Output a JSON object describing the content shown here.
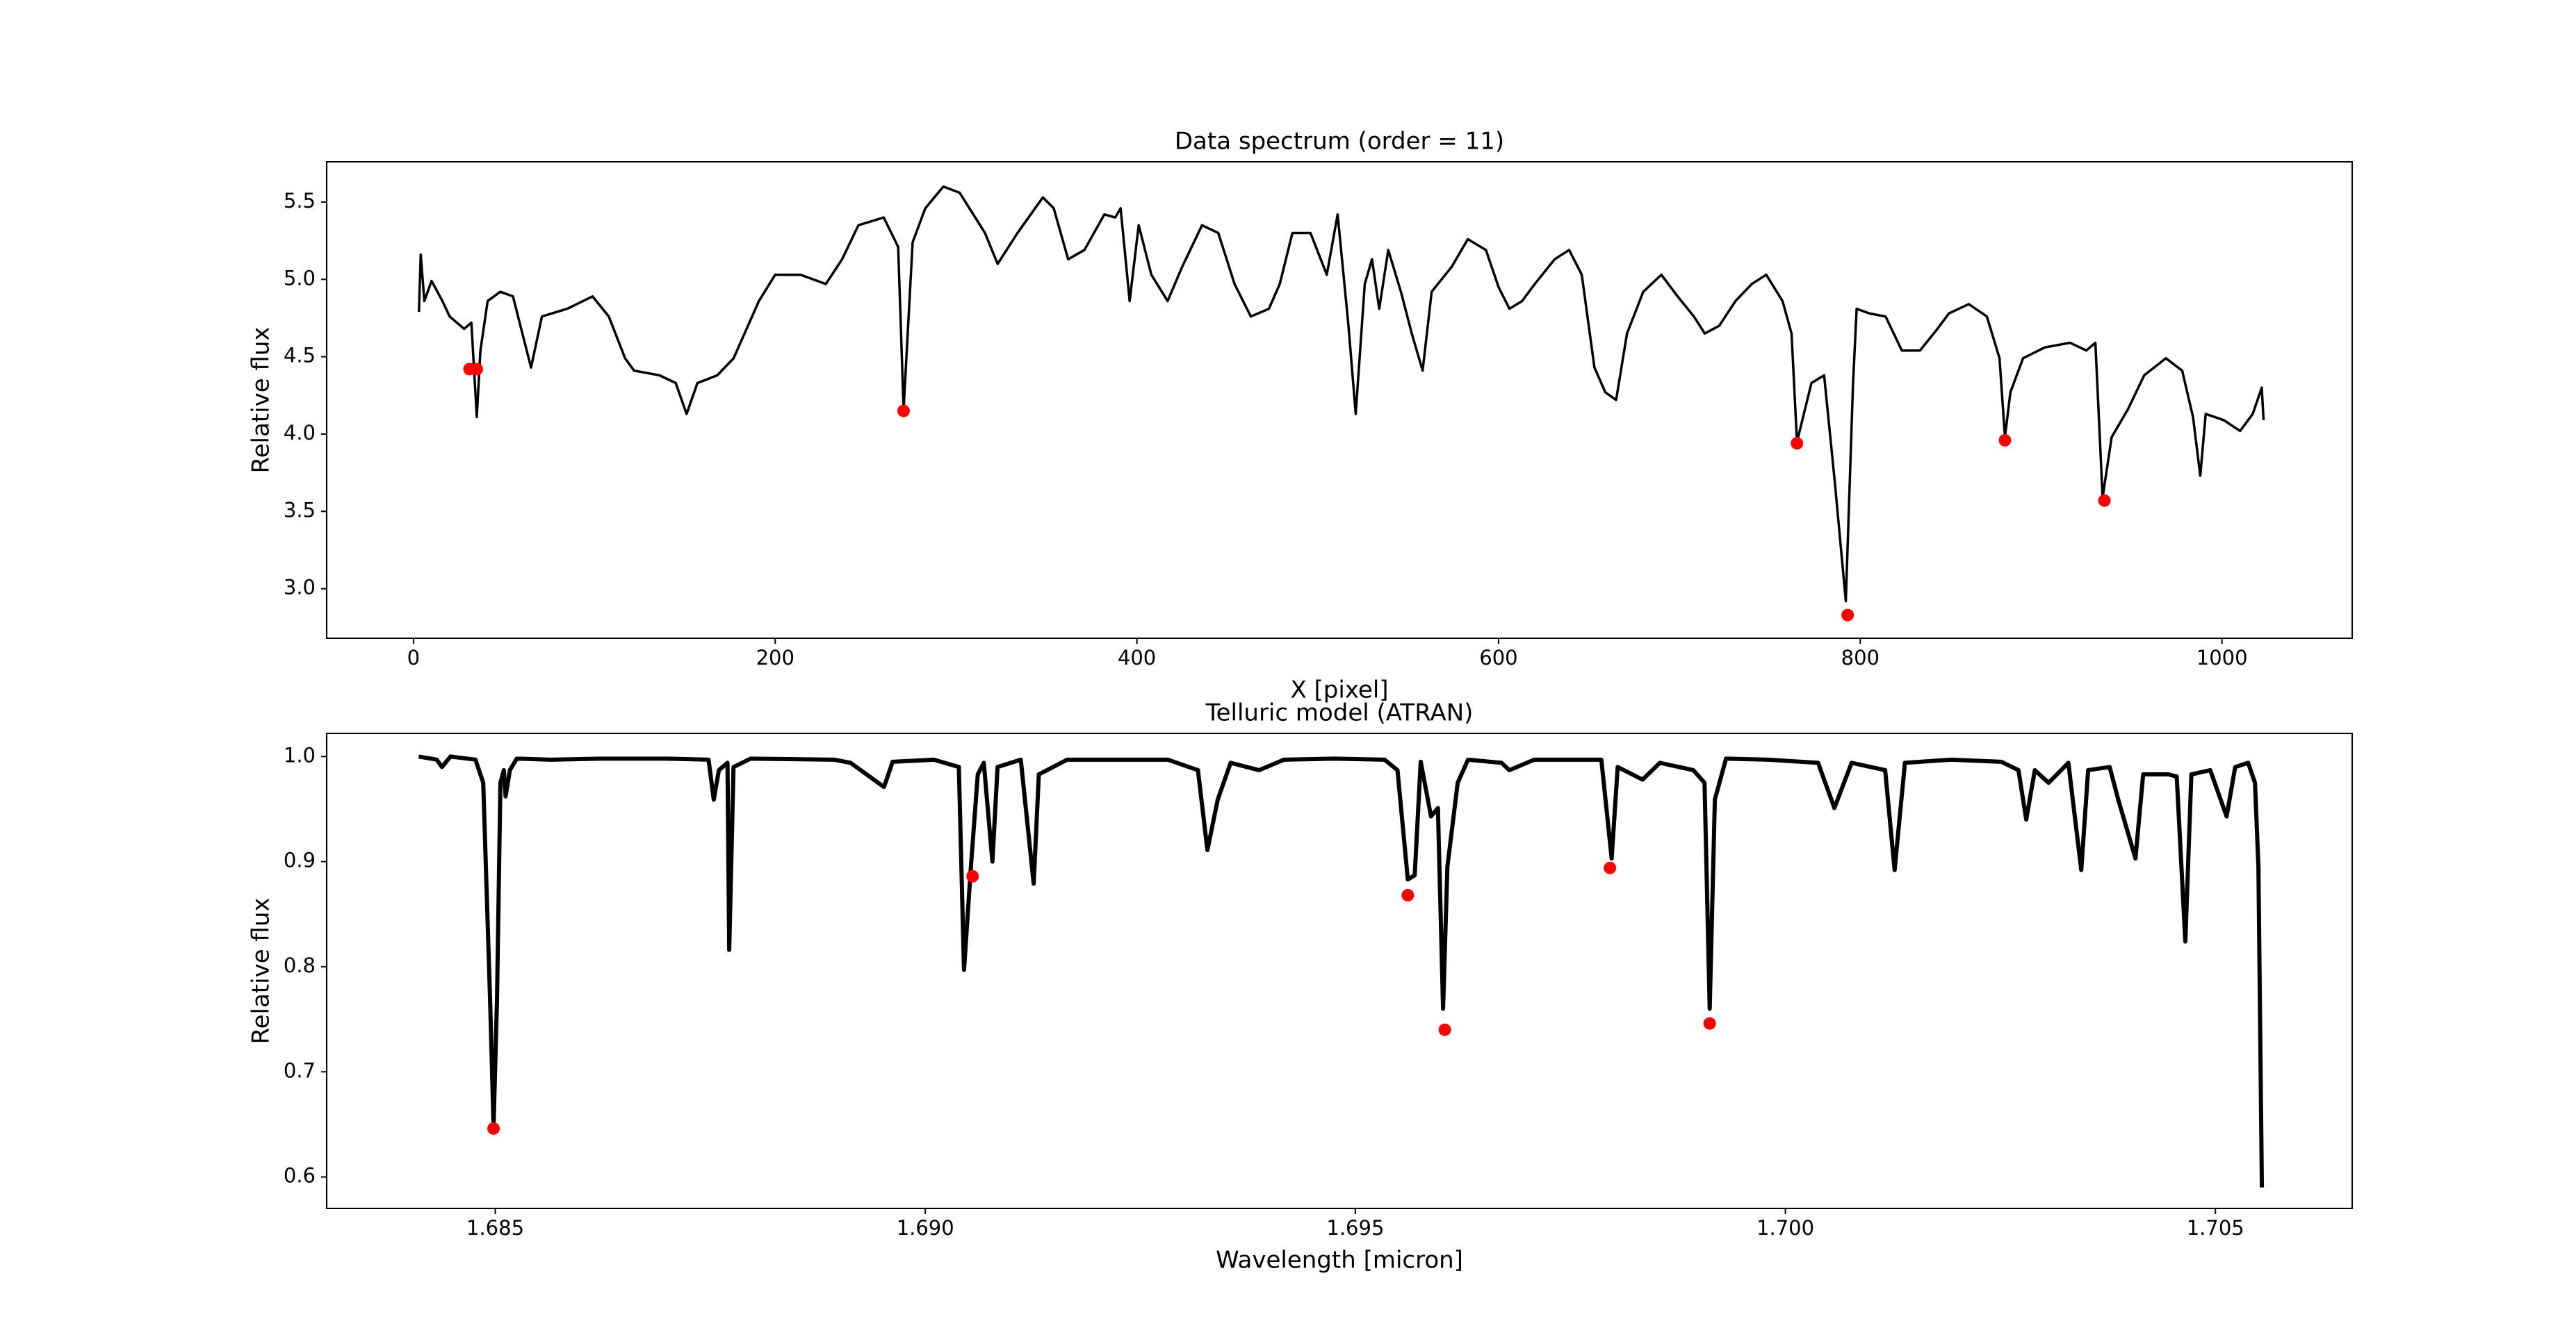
{
  "chart_data": [
    {
      "type": "line",
      "title": "Data spectrum (order = 11)",
      "xlabel": "X [pixel]",
      "ylabel": "Relative flux",
      "xlim": [
        -48,
        1072
      ],
      "ylim": [
        2.68,
        5.76
      ],
      "xticks": [
        0,
        200,
        400,
        600,
        800,
        1000
      ],
      "yticks": [
        {
          "value": 3,
          "label": "3.0"
        },
        3.5,
        {
          "value": 4,
          "label": "4.0"
        },
        4.5,
        {
          "value": 5,
          "label": "5.0"
        },
        5.5
      ],
      "series": [
        {
          "color": "#000000",
          "x": [
            3,
            4,
            6,
            10,
            16,
            20,
            28,
            32,
            35,
            37,
            41,
            48,
            55,
            65,
            71,
            85,
            99,
            108,
            117,
            122,
            136,
            145,
            151,
            157,
            168,
            177,
            191,
            200,
            214,
            228,
            237,
            246,
            260,
            268,
            271,
            276,
            283,
            293,
            302,
            316,
            323,
            334,
            348,
            354,
            362,
            371,
            382,
            388,
            391,
            396,
            401,
            408,
            417,
            425,
            436,
            445,
            454,
            463,
            473,
            479,
            486,
            496,
            505,
            511,
            517,
            521,
            526,
            530,
            534,
            539,
            546,
            552,
            558,
            563,
            574,
            583,
            593,
            600,
            606,
            613,
            620,
            631,
            639,
            646,
            653,
            659,
            665,
            671,
            680,
            690,
            699,
            708,
            714,
            722,
            731,
            740,
            748,
            757,
            762,
            765,
            773,
            780,
            786,
            792,
            796,
            798,
            805,
            814,
            823,
            833,
            842,
            849,
            860,
            870,
            877,
            880,
            883,
            890,
            902,
            916,
            925,
            930,
            934,
            939,
            948,
            957,
            969,
            978,
            984,
            988,
            991,
            1001,
            1010,
            1017,
            1022,
            1023
          ],
          "values": [
            4.79,
            5.16,
            4.86,
            4.99,
            4.86,
            4.76,
            4.68,
            4.72,
            4.11,
            4.54,
            4.86,
            4.92,
            4.89,
            4.43,
            4.76,
            4.81,
            4.89,
            4.76,
            4.49,
            4.41,
            4.38,
            4.33,
            4.13,
            4.33,
            4.38,
            4.49,
            4.86,
            5.03,
            5.03,
            4.97,
            5.13,
            5.35,
            5.4,
            5.21,
            4.16,
            5.24,
            5.46,
            5.6,
            5.56,
            5.3,
            5.1,
            5.3,
            5.53,
            5.46,
            5.13,
            5.19,
            5.42,
            5.4,
            5.46,
            4.86,
            5.35,
            5.03,
            4.86,
            5.08,
            5.35,
            5.3,
            4.97,
            4.76,
            4.81,
            4.97,
            5.3,
            5.3,
            5.03,
            5.42,
            4.7,
            4.13,
            4.97,
            5.13,
            4.81,
            5.19,
            4.92,
            4.65,
            4.41,
            4.92,
            5.08,
            5.26,
            5.19,
            4.95,
            4.81,
            4.86,
            4.97,
            5.13,
            5.19,
            5.03,
            4.43,
            4.27,
            4.22,
            4.65,
            4.92,
            5.03,
            4.89,
            4.76,
            4.65,
            4.7,
            4.86,
            4.97,
            5.03,
            4.86,
            4.65,
            3.95,
            4.33,
            4.38,
            3.68,
            2.92,
            4.33,
            4.81,
            4.78,
            4.76,
            4.54,
            4.54,
            4.67,
            4.78,
            4.84,
            4.76,
            4.49,
            3.98,
            4.27,
            4.49,
            4.56,
            4.59,
            4.54,
            4.59,
            3.59,
            3.98,
            4.16,
            4.38,
            4.49,
            4.41,
            4.11,
            3.73,
            4.13,
            4.09,
            4.02,
            4.13,
            4.3,
            4.09
          ]
        },
        {
          "type": "scatter",
          "color": "#ff0000",
          "x": [
            31,
            35,
            271,
            765,
            793,
            880,
            935
          ],
          "values": [
            4.42,
            4.42,
            4.15,
            3.94,
            2.83,
            3.96,
            3.57
          ]
        }
      ]
    },
    {
      "type": "line",
      "title": "Telluric model (ATRAN)",
      "xlabel": "Wavelength [micron]",
      "ylabel": "Relative flux",
      "xlim": [
        1.68304,
        1.70659
      ],
      "ylim": [
        0.57,
        1.022
      ],
      "xticks": [
        1.685,
        {
          "value": 1.69,
          "label": "1.690"
        },
        1.695,
        {
          "value": 1.7,
          "label": "1.700"
        },
        1.705
      ],
      "yticks": [
        0.6,
        0.7,
        0.8,
        0.9,
        {
          "value": 1,
          "label": "1.0"
        }
      ],
      "series": [
        {
          "color": "#000000",
          "x": [
            1.68411,
            1.68432,
            1.68438,
            1.68448,
            1.68477,
            1.68486,
            1.68494,
            1.68498,
            1.68502,
            1.68506,
            1.6851,
            1.68512,
            1.68517,
            1.68525,
            1.68564,
            1.68622,
            1.687,
            1.68748,
            1.68754,
            1.6876,
            1.6877,
            1.68772,
            1.68777,
            1.68797,
            1.68894,
            1.68913,
            1.68952,
            1.68962,
            1.6901,
            1.69039,
            1.69045,
            1.69053,
            1.69061,
            1.69068,
            1.69078,
            1.69084,
            1.69111,
            1.69126,
            1.69132,
            1.69165,
            1.69204,
            1.69282,
            1.69317,
            1.69328,
            1.6934,
            1.69355,
            1.69388,
            1.69417,
            1.69476,
            1.69534,
            1.69549,
            1.69561,
            1.69569,
            1.69576,
            1.69588,
            1.69596,
            1.69602,
            1.69607,
            1.69619,
            1.69631,
            1.6967,
            1.69679,
            1.69708,
            1.69786,
            1.69798,
            1.69805,
            1.69834,
            1.69854,
            1.69893,
            1.69906,
            1.69912,
            1.69918,
            1.69931,
            1.6998,
            1.70038,
            1.70057,
            1.70077,
            1.70116,
            1.70127,
            1.70139,
            1.70193,
            1.70251,
            1.70271,
            1.7028,
            1.7029,
            1.70306,
            1.70329,
            1.70344,
            1.70352,
            1.70377,
            1.70387,
            1.70407,
            1.70416,
            1.70445,
            1.70455,
            1.70465,
            1.70472,
            1.70494,
            1.70513,
            1.70523,
            1.70538,
            1.70546,
            1.7055,
            1.70554
          ],
          "values": [
            1.0,
            0.997,
            0.99,
            1.0,
            0.997,
            0.975,
            0.768,
            0.648,
            0.768,
            0.975,
            0.987,
            0.962,
            0.987,
            0.998,
            0.997,
            0.998,
            0.998,
            0.997,
            0.959,
            0.987,
            0.994,
            0.816,
            0.99,
            0.998,
            0.997,
            0.994,
            0.971,
            0.995,
            0.997,
            0.99,
            0.797,
            0.895,
            0.983,
            0.994,
            0.9,
            0.99,
            0.997,
            0.879,
            0.983,
            0.997,
            0.997,
            0.997,
            0.987,
            0.911,
            0.959,
            0.994,
            0.987,
            0.997,
            0.998,
            0.997,
            0.987,
            0.883,
            0.887,
            0.995,
            0.943,
            0.951,
            0.76,
            0.895,
            0.975,
            0.997,
            0.994,
            0.987,
            0.997,
            0.997,
            0.903,
            0.99,
            0.978,
            0.994,
            0.987,
            0.975,
            0.76,
            0.959,
            0.998,
            0.997,
            0.994,
            0.951,
            0.994,
            0.987,
            0.892,
            0.994,
            0.997,
            0.995,
            0.987,
            0.94,
            0.987,
            0.975,
            0.994,
            0.892,
            0.987,
            0.99,
            0.959,
            0.903,
            0.983,
            0.983,
            0.981,
            0.824,
            0.983,
            0.987,
            0.943,
            0.99,
            0.994,
            0.975,
            0.895,
            0.59
          ]
        },
        {
          "type": "scatter",
          "color": "#ff0000",
          "x": [
            1.68498,
            1.69055,
            1.69561,
            1.69604,
            1.69796,
            1.69912
          ],
          "values": [
            0.646,
            0.886,
            0.868,
            0.74,
            0.894,
            0.746
          ]
        }
      ]
    }
  ]
}
